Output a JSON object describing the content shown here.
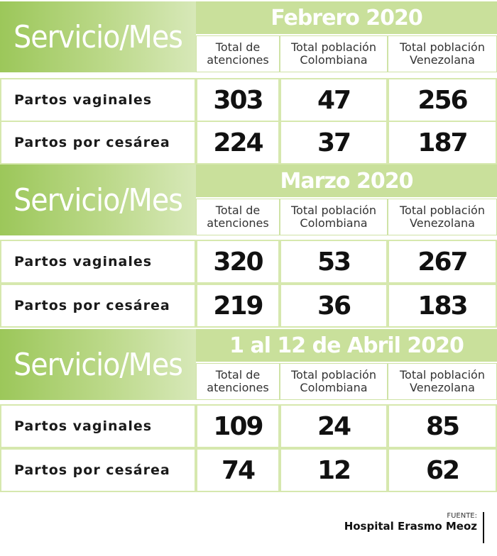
{
  "sections": [
    {
      "corner_label": "Servicio/Mes",
      "period": "Febrero  2020",
      "columns": [
        {
          "l1": "Total de",
          "l2": "atenciones"
        },
        {
          "l1": "Total población",
          "l2": "Colombiana"
        },
        {
          "l1": "Total población",
          "l2": "Venezolana"
        }
      ],
      "rows": [
        {
          "label": "Partos vaginales",
          "total": "303",
          "colombiana": "47",
          "venezolana": "256"
        },
        {
          "label": "Partos por cesárea",
          "total": "224",
          "colombiana": "37",
          "venezolana": "187"
        }
      ]
    },
    {
      "corner_label": "Servicio/Mes",
      "period": "Marzo 2020",
      "columns": [
        {
          "l1": "Total de",
          "l2": "atenciones"
        },
        {
          "l1": "Total población",
          "l2": "Colombiana"
        },
        {
          "l1": "Total población",
          "l2": "Venezolana"
        }
      ],
      "rows": [
        {
          "label": "Partos vaginales",
          "total": "320",
          "colombiana": "53",
          "venezolana": "267"
        },
        {
          "label": "Partos por cesárea",
          "total": "219",
          "colombiana": "36",
          "venezolana": "183"
        }
      ]
    },
    {
      "corner_label": "Servicio/Mes",
      "period": "1 al 12 de Abril 2020",
      "columns": [
        {
          "l1": "Total de",
          "l2": "atenciones"
        },
        {
          "l1": "Total población",
          "l2": "Colombiana"
        },
        {
          "l1": "Total población",
          "l2": "Venezolana"
        }
      ],
      "rows": [
        {
          "label": "Partos vaginales",
          "total": "109",
          "colombiana": "24",
          "venezolana": "85"
        },
        {
          "label": "Partos por cesárea",
          "total": "74",
          "colombiana": "12",
          "venezolana": "62"
        }
      ]
    }
  ],
  "source": {
    "label": "FUENTE:",
    "name": "Hospital Erasmo Meoz"
  }
}
